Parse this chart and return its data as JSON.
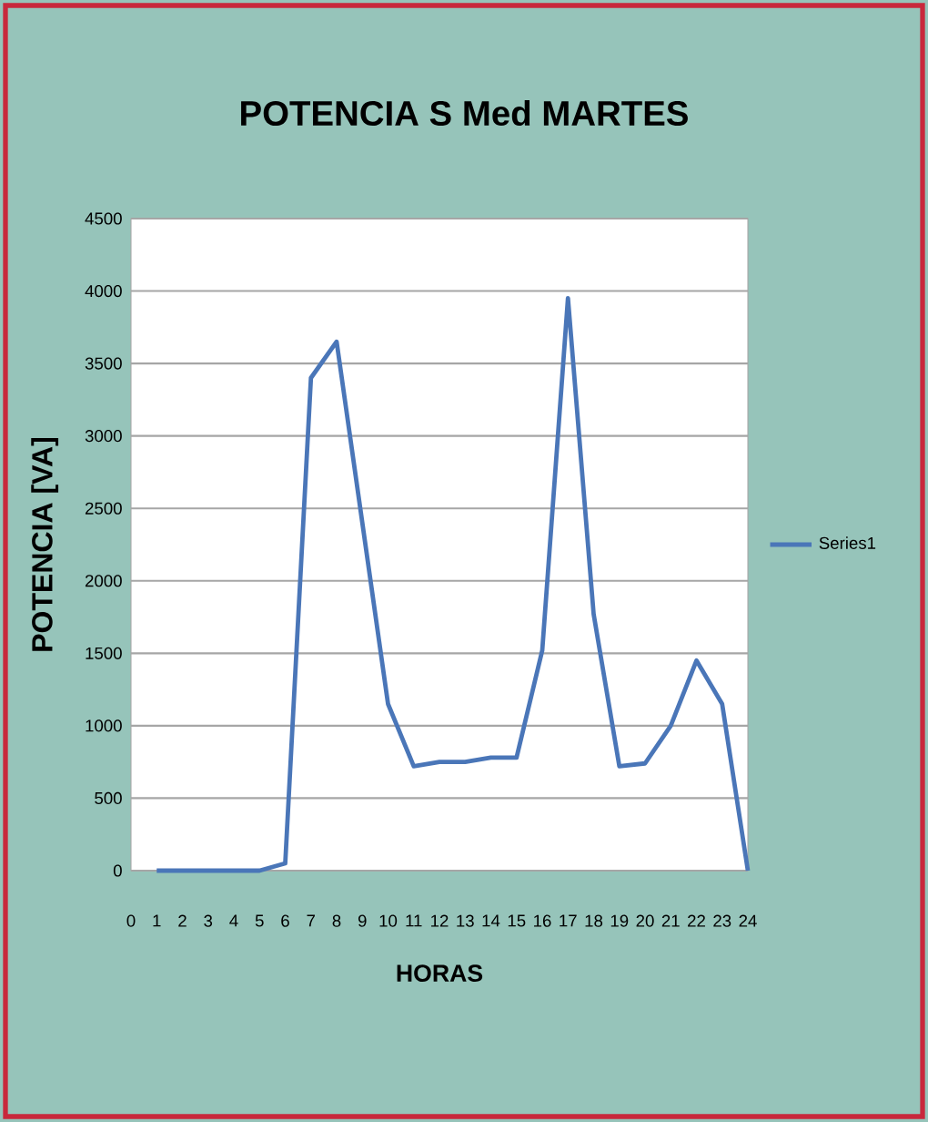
{
  "chart_data": {
    "type": "line",
    "title": "POTENCIA  S Med MARTES",
    "xlabel": "HORAS",
    "ylabel": "POTENCIA [VA]",
    "x": [
      1,
      2,
      3,
      4,
      5,
      6,
      7,
      8,
      9,
      10,
      11,
      12,
      13,
      14,
      15,
      16,
      17,
      18,
      19,
      20,
      21,
      22,
      23,
      24
    ],
    "series": [
      {
        "name": "Series1",
        "color": "#4a76b8",
        "values": [
          0,
          0,
          0,
          0,
          0,
          50,
          3400,
          3650,
          2400,
          1150,
          720,
          750,
          750,
          780,
          780,
          1520,
          3950,
          1770,
          720,
          740,
          1000,
          1450,
          1150,
          0
        ]
      }
    ],
    "xlim": [
      0,
      24
    ],
    "xticks": [
      0,
      1,
      2,
      3,
      4,
      5,
      6,
      7,
      8,
      9,
      10,
      11,
      12,
      13,
      14,
      15,
      16,
      17,
      18,
      19,
      20,
      21,
      22,
      23,
      24
    ],
    "ylim": [
      0,
      4500
    ],
    "yticks": [
      0,
      500,
      1000,
      1500,
      2000,
      2500,
      3000,
      3500,
      4000,
      4500
    ],
    "grid": "y",
    "legend": "right",
    "marker": "none",
    "line_style": "solid"
  }
}
